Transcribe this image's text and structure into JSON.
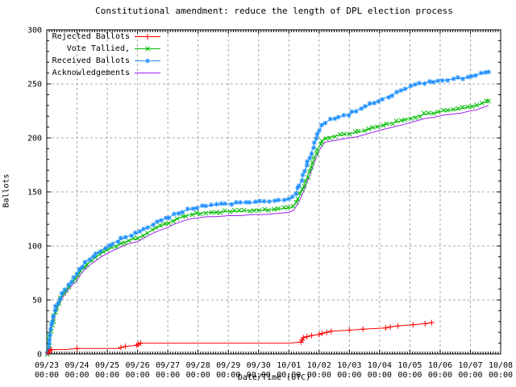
{
  "colors": {
    "background": "#ffffff",
    "axis": "#000000",
    "grid": "#a8a8a8",
    "text": "#000000",
    "rejected": "#ff0000",
    "tallied": "#00bb00",
    "received": "#1e90ff",
    "acknowledgements": "#a020f0"
  },
  "chart_data": {
    "type": "line",
    "title": "Constitutional amendment: reduce the length of DPL election process",
    "xlabel": "Date/Time (UTC)",
    "ylabel": "Ballots",
    "ylim": [
      0,
      300
    ],
    "grid": true,
    "legend_position": "top-left",
    "y_ticks": [
      0,
      50,
      100,
      150,
      200,
      250,
      300
    ],
    "x_unit": "days since 09/23 00:00 UTC",
    "xlim_days": [
      0,
      15
    ],
    "x_ticks": [
      {
        "date": "09/23",
        "time": "00:00"
      },
      {
        "date": "09/24",
        "time": "00:00"
      },
      {
        "date": "09/25",
        "time": "00:00"
      },
      {
        "date": "09/26",
        "time": "00:00"
      },
      {
        "date": "09/27",
        "time": "00:00"
      },
      {
        "date": "09/28",
        "time": "00:00"
      },
      {
        "date": "09/29",
        "time": "00:00"
      },
      {
        "date": "09/30",
        "time": "00:00"
      },
      {
        "date": "10/01",
        "time": "00:00"
      },
      {
        "date": "10/02",
        "time": "00:00"
      },
      {
        "date": "10/03",
        "time": "00:00"
      },
      {
        "date": "10/04",
        "time": "00:00"
      },
      {
        "date": "10/05",
        "time": "00:00"
      },
      {
        "date": "10/06",
        "time": "00:00"
      },
      {
        "date": "10/07",
        "time": "00:00"
      },
      {
        "date": "10/08",
        "time": "00:00"
      }
    ],
    "series": [
      {
        "name": "Rejected Ballots",
        "color": "#ff0000",
        "marker": "plus",
        "marker_density": "sparse",
        "points": [
          [
            0,
            0
          ],
          [
            0.05,
            1
          ],
          [
            0.1,
            3
          ],
          [
            0.15,
            4
          ],
          [
            0.6,
            4
          ],
          [
            1.0,
            5
          ],
          [
            2.4,
            5
          ],
          [
            2.45,
            6
          ],
          [
            2.6,
            7
          ],
          [
            2.98,
            8
          ],
          [
            3.02,
            9
          ],
          [
            3.1,
            10
          ],
          [
            4.0,
            10
          ],
          [
            5.0,
            10
          ],
          [
            6.0,
            10
          ],
          [
            7.0,
            10
          ],
          [
            8.0,
            10
          ],
          [
            8.4,
            11
          ],
          [
            8.44,
            13
          ],
          [
            8.48,
            15
          ],
          [
            8.6,
            16
          ],
          [
            8.75,
            17
          ],
          [
            9.0,
            18
          ],
          [
            9.1,
            19
          ],
          [
            9.25,
            20
          ],
          [
            9.4,
            21
          ],
          [
            10.0,
            22
          ],
          [
            10.45,
            23
          ],
          [
            11.2,
            24
          ],
          [
            11.35,
            25
          ],
          [
            11.6,
            26
          ],
          [
            12.1,
            27
          ],
          [
            12.5,
            28
          ],
          [
            12.72,
            29
          ]
        ]
      },
      {
        "name": "Vote Tallied,",
        "color": "#00bb00",
        "marker": "cross",
        "marker_density": "dense",
        "points": [
          [
            0,
            0
          ],
          [
            0.04,
            2
          ],
          [
            0.08,
            12
          ],
          [
            0.12,
            22
          ],
          [
            0.17,
            28
          ],
          [
            0.25,
            36
          ],
          [
            0.33,
            43
          ],
          [
            0.42,
            49
          ],
          [
            0.55,
            55
          ],
          [
            0.7,
            61
          ],
          [
            0.85,
            66
          ],
          [
            1.0,
            71
          ],
          [
            1.1,
            76
          ],
          [
            1.25,
            81
          ],
          [
            1.4,
            85
          ],
          [
            1.6,
            89
          ],
          [
            1.8,
            93
          ],
          [
            2.0,
            96
          ],
          [
            2.2,
            99
          ],
          [
            2.45,
            102
          ],
          [
            2.7,
            105
          ],
          [
            3.0,
            107
          ],
          [
            3.2,
            110
          ],
          [
            3.45,
            114
          ],
          [
            3.7,
            118
          ],
          [
            4.0,
            121
          ],
          [
            4.2,
            124
          ],
          [
            4.5,
            127
          ],
          [
            4.75,
            129
          ],
          [
            5.0,
            130
          ],
          [
            5.3,
            131
          ],
          [
            5.6,
            131
          ],
          [
            6.0,
            132
          ],
          [
            6.4,
            132
          ],
          [
            6.8,
            133
          ],
          [
            7.2,
            133
          ],
          [
            7.6,
            134
          ],
          [
            8.0,
            135
          ],
          [
            8.15,
            137
          ],
          [
            8.3,
            143
          ],
          [
            8.45,
            152
          ],
          [
            8.6,
            163
          ],
          [
            8.75,
            174
          ],
          [
            8.9,
            185
          ],
          [
            9.0,
            192
          ],
          [
            9.1,
            197
          ],
          [
            9.2,
            200
          ],
          [
            9.4,
            201
          ],
          [
            9.6,
            202
          ],
          [
            9.8,
            203
          ],
          [
            10.0,
            204
          ],
          [
            10.25,
            205
          ],
          [
            10.5,
            207
          ],
          [
            10.75,
            209
          ],
          [
            11.0,
            211
          ],
          [
            11.3,
            213
          ],
          [
            11.6,
            215
          ],
          [
            12.0,
            218
          ],
          [
            12.25,
            220
          ],
          [
            12.5,
            222
          ],
          [
            12.8,
            223
          ],
          [
            13.1,
            225
          ],
          [
            13.4,
            226
          ],
          [
            13.7,
            227
          ],
          [
            14.0,
            229
          ],
          [
            14.2,
            230
          ],
          [
            14.4,
            232
          ],
          [
            14.6,
            234
          ]
        ]
      },
      {
        "name": "Received Ballots",
        "color": "#1e90ff",
        "marker": "star",
        "marker_density": "dense",
        "points": [
          [
            0,
            0
          ],
          [
            0.04,
            3
          ],
          [
            0.08,
            14
          ],
          [
            0.12,
            24
          ],
          [
            0.17,
            30
          ],
          [
            0.25,
            38
          ],
          [
            0.33,
            45
          ],
          [
            0.42,
            51
          ],
          [
            0.55,
            57
          ],
          [
            0.7,
            63
          ],
          [
            0.85,
            68
          ],
          [
            1.0,
            74
          ],
          [
            1.1,
            79
          ],
          [
            1.25,
            84
          ],
          [
            1.4,
            88
          ],
          [
            1.6,
            92
          ],
          [
            1.8,
            96
          ],
          [
            2.0,
            99
          ],
          [
            2.2,
            103
          ],
          [
            2.45,
            106
          ],
          [
            2.7,
            109
          ],
          [
            3.0,
            112
          ],
          [
            3.2,
            115
          ],
          [
            3.45,
            119
          ],
          [
            3.7,
            123
          ],
          [
            4.0,
            126
          ],
          [
            4.2,
            129
          ],
          [
            4.5,
            132
          ],
          [
            4.75,
            134
          ],
          [
            5.0,
            136
          ],
          [
            5.3,
            137
          ],
          [
            5.6,
            138
          ],
          [
            6.0,
            139
          ],
          [
            6.4,
            140
          ],
          [
            6.8,
            140
          ],
          [
            7.2,
            141
          ],
          [
            7.6,
            142
          ],
          [
            8.0,
            143
          ],
          [
            8.1,
            144
          ],
          [
            8.2,
            148
          ],
          [
            8.35,
            156
          ],
          [
            8.5,
            167
          ],
          [
            8.65,
            179
          ],
          [
            8.8,
            191
          ],
          [
            8.95,
            202
          ],
          [
            9.05,
            209
          ],
          [
            9.15,
            213
          ],
          [
            9.3,
            216
          ],
          [
            9.5,
            218
          ],
          [
            9.75,
            220
          ],
          [
            10.0,
            222
          ],
          [
            10.2,
            225
          ],
          [
            10.45,
            228
          ],
          [
            10.7,
            231
          ],
          [
            11.0,
            235
          ],
          [
            11.25,
            238
          ],
          [
            11.5,
            241
          ],
          [
            11.75,
            244
          ],
          [
            12.0,
            247
          ],
          [
            12.2,
            249
          ],
          [
            12.5,
            251
          ],
          [
            12.8,
            252
          ],
          [
            13.0,
            253
          ],
          [
            13.3,
            254
          ],
          [
            13.6,
            255
          ],
          [
            13.9,
            256
          ],
          [
            14.1,
            257
          ],
          [
            14.3,
            259
          ],
          [
            14.5,
            260
          ],
          [
            14.6,
            261
          ]
        ]
      },
      {
        "name": "Acknowledgements",
        "color": "#a020f0",
        "marker": "none",
        "marker_density": "none",
        "points": [
          [
            0,
            0
          ],
          [
            0.04,
            1
          ],
          [
            0.08,
            10
          ],
          [
            0.12,
            20
          ],
          [
            0.17,
            26
          ],
          [
            0.25,
            34
          ],
          [
            0.33,
            41
          ],
          [
            0.42,
            47
          ],
          [
            0.55,
            53
          ],
          [
            0.7,
            59
          ],
          [
            0.85,
            64
          ],
          [
            1.0,
            68
          ],
          [
            1.1,
            73
          ],
          [
            1.25,
            78
          ],
          [
            1.4,
            82
          ],
          [
            1.6,
            86
          ],
          [
            1.8,
            90
          ],
          [
            2.0,
            93
          ],
          [
            2.2,
            96
          ],
          [
            2.45,
            99
          ],
          [
            2.7,
            102
          ],
          [
            3.0,
            104
          ],
          [
            3.2,
            107
          ],
          [
            3.45,
            111
          ],
          [
            3.7,
            114
          ],
          [
            4.0,
            117
          ],
          [
            4.2,
            120
          ],
          [
            4.5,
            123
          ],
          [
            4.75,
            125
          ],
          [
            5.0,
            126
          ],
          [
            5.3,
            127
          ],
          [
            5.6,
            127
          ],
          [
            6.0,
            128
          ],
          [
            6.4,
            128
          ],
          [
            6.8,
            129
          ],
          [
            7.2,
            129
          ],
          [
            7.6,
            130
          ],
          [
            8.0,
            131
          ],
          [
            8.15,
            133
          ],
          [
            8.3,
            139
          ],
          [
            8.45,
            148
          ],
          [
            8.6,
            159
          ],
          [
            8.75,
            170
          ],
          [
            8.9,
            181
          ],
          [
            9.0,
            188
          ],
          [
            9.1,
            193
          ],
          [
            9.2,
            196
          ],
          [
            9.4,
            197
          ],
          [
            9.6,
            198
          ],
          [
            9.8,
            199
          ],
          [
            10.0,
            200
          ],
          [
            10.25,
            201
          ],
          [
            10.5,
            203
          ],
          [
            10.75,
            205
          ],
          [
            11.0,
            207
          ],
          [
            11.3,
            209
          ],
          [
            11.6,
            211
          ],
          [
            12.0,
            214
          ],
          [
            12.25,
            216
          ],
          [
            12.5,
            218
          ],
          [
            12.8,
            219
          ],
          [
            13.1,
            221
          ],
          [
            13.4,
            222
          ],
          [
            13.7,
            223
          ],
          [
            14.0,
            225
          ],
          [
            14.2,
            226
          ],
          [
            14.4,
            228
          ],
          [
            14.6,
            230
          ]
        ]
      }
    ]
  }
}
